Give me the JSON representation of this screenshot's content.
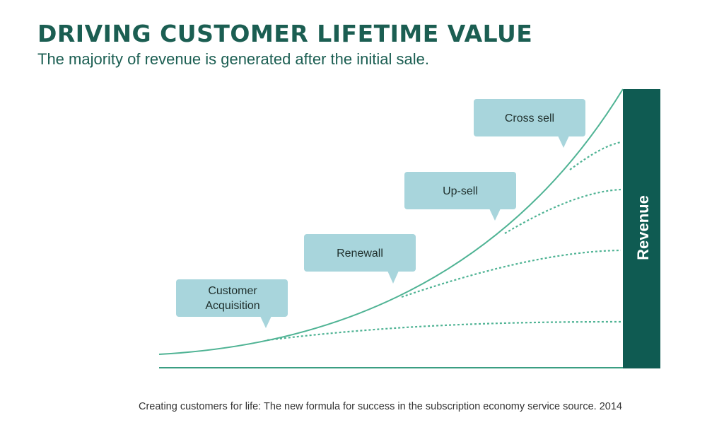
{
  "title": "DRIVING CUSTOMER LIFETIME VALUE",
  "subtitle": "The majority of revenue is generated after the initial sale.",
  "diagram": {
    "stages": [
      {
        "label_lines": [
          "Customer",
          "Acquisition"
        ]
      },
      {
        "label_lines": [
          "Renewall"
        ]
      },
      {
        "label_lines": [
          "Up-sell"
        ]
      },
      {
        "label_lines": [
          "Cross sell"
        ]
      }
    ],
    "bar_label": "Revenue"
  },
  "source": "Creating customers for life: The new formula for success in the subscription economy service source. 2014",
  "colors": {
    "title": "#1b5e52",
    "curve": "#4fb394",
    "bar": "#0f5b52",
    "bubble": "#a8d5dc",
    "baseline": "#3a9e82"
  }
}
